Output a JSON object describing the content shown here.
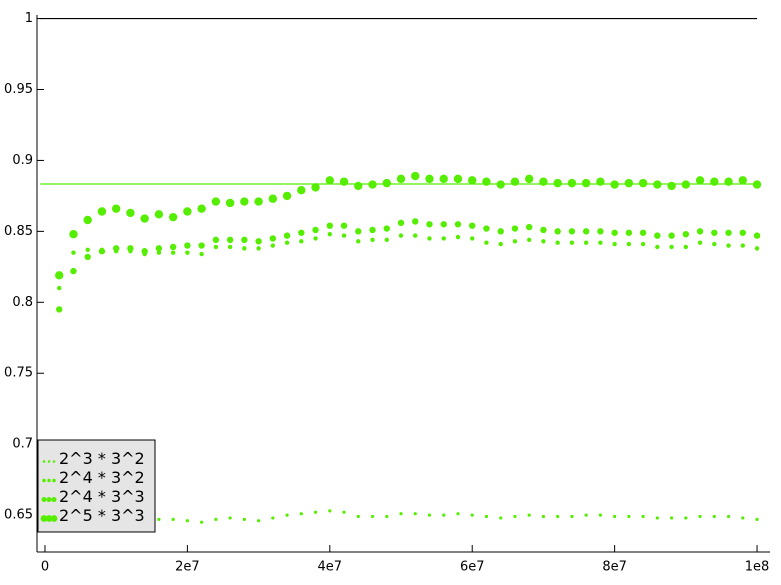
{
  "chart_data": {
    "type": "scatter",
    "x": [
      2000000,
      4000000,
      6000000,
      8000000,
      10000000,
      12000000,
      14000000,
      16000000,
      18000000,
      20000000,
      22000000,
      24000000,
      26000000,
      28000000,
      30000000,
      32000000,
      34000000,
      36000000,
      38000000,
      40000000,
      42000000,
      44000000,
      46000000,
      48000000,
      50000000,
      52000000,
      54000000,
      56000000,
      58000000,
      60000000,
      62000000,
      64000000,
      66000000,
      68000000,
      70000000,
      72000000,
      74000000,
      76000000,
      78000000,
      80000000,
      82000000,
      84000000,
      86000000,
      88000000,
      90000000,
      92000000,
      94000000,
      96000000,
      98000000,
      100000000
    ],
    "series": [
      {
        "name": "2^3 * 3^2",
        "color": "#55ee00",
        "values": [
          0.646,
          0.647,
          0.648,
          0.647,
          0.648,
          0.648,
          0.647,
          0.647,
          0.647,
          0.646,
          0.645,
          0.647,
          0.648,
          0.647,
          0.646,
          0.648,
          0.65,
          0.651,
          0.652,
          0.653,
          0.652,
          0.649,
          0.649,
          0.649,
          0.651,
          0.651,
          0.65,
          0.65,
          0.651,
          0.65,
          0.649,
          0.648,
          0.649,
          0.65,
          0.649,
          0.649,
          0.649,
          0.65,
          0.65,
          0.649,
          0.649,
          0.649,
          0.648,
          0.648,
          0.648,
          0.649,
          0.649,
          0.649,
          0.648,
          0.647
        ]
      },
      {
        "name": "2^4 * 3^2",
        "color": "#55ee00",
        "values": [
          0.81,
          0.835,
          0.837,
          0.837,
          0.836,
          0.836,
          0.834,
          0.835,
          0.835,
          0.835,
          0.834,
          0.839,
          0.839,
          0.838,
          0.838,
          0.84,
          0.842,
          0.843,
          0.845,
          0.848,
          0.847,
          0.843,
          0.844,
          0.844,
          0.847,
          0.847,
          0.845,
          0.845,
          0.846,
          0.845,
          0.842,
          0.841,
          0.843,
          0.844,
          0.843,
          0.842,
          0.842,
          0.842,
          0.842,
          0.841,
          0.841,
          0.841,
          0.839,
          0.839,
          0.839,
          0.842,
          0.841,
          0.84,
          0.84,
          0.838
        ]
      },
      {
        "name": "2^4 * 3^3",
        "color": "#55ee00",
        "values": [
          0.795,
          0.822,
          0.832,
          0.836,
          0.838,
          0.838,
          0.836,
          0.838,
          0.839,
          0.84,
          0.84,
          0.844,
          0.844,
          0.844,
          0.843,
          0.845,
          0.847,
          0.849,
          0.851,
          0.854,
          0.854,
          0.85,
          0.851,
          0.852,
          0.856,
          0.857,
          0.855,
          0.855,
          0.855,
          0.854,
          0.852,
          0.85,
          0.852,
          0.853,
          0.851,
          0.85,
          0.85,
          0.85,
          0.85,
          0.849,
          0.849,
          0.849,
          0.847,
          0.847,
          0.848,
          0.85,
          0.849,
          0.849,
          0.849,
          0.847
        ]
      },
      {
        "name": "2^5 * 3^3",
        "color": "#55ee00",
        "values": [
          0.819,
          0.848,
          0.858,
          0.864,
          0.866,
          0.863,
          0.859,
          0.862,
          0.86,
          0.864,
          0.866,
          0.871,
          0.87,
          0.871,
          0.871,
          0.873,
          0.875,
          0.879,
          0.881,
          0.886,
          0.885,
          0.882,
          0.883,
          0.884,
          0.887,
          0.889,
          0.887,
          0.887,
          0.887,
          0.886,
          0.885,
          0.883,
          0.885,
          0.887,
          0.885,
          0.884,
          0.884,
          0.884,
          0.885,
          0.883,
          0.884,
          0.884,
          0.883,
          0.882,
          0.883,
          0.886,
          0.885,
          0.885,
          0.886,
          0.883
        ]
      }
    ],
    "reference_lines": [
      {
        "value": 1,
        "color": "#000000"
      },
      {
        "value": 0.8834,
        "color": "#55ee00"
      }
    ],
    "xlim": [
      -1120000,
      101820000
    ],
    "ylim": [
      0.624,
      1.0025
    ],
    "xticks": [
      0,
      {
        "value": 20000000,
        "label": "2e7"
      },
      {
        "value": 40000000,
        "label": "4e7"
      },
      {
        "value": 60000000,
        "label": "6e7"
      },
      {
        "value": 80000000,
        "label": "8e7"
      },
      {
        "value": 100000000,
        "label": "1e8"
      }
    ],
    "yticks": [
      0.65,
      0.7,
      0.75,
      0.8,
      0.85,
      0.9,
      0.95,
      1
    ],
    "legend": "lower left"
  }
}
